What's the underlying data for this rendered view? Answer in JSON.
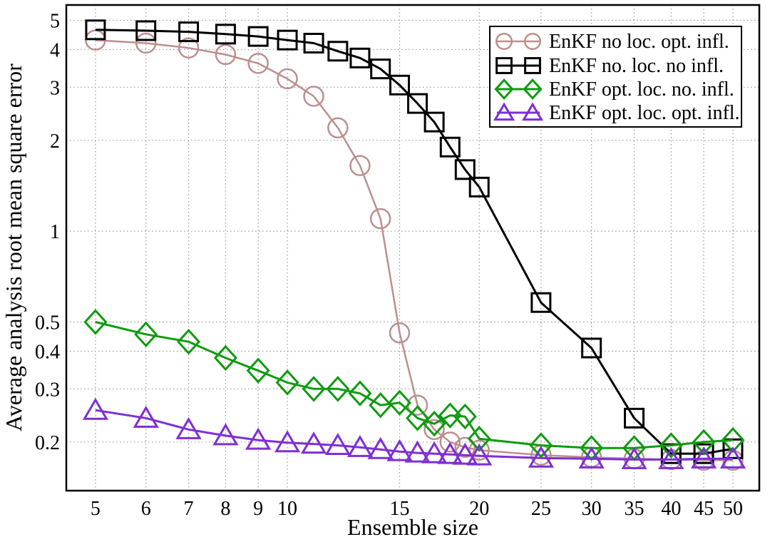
{
  "chart_data": {
    "type": "line",
    "title": "",
    "xlabel": "Ensemble size",
    "ylabel": "Average analysis root mean square error",
    "xscale": "log",
    "yscale": "log",
    "xlim": [
      4.5,
      55
    ],
    "ylim": [
      0.138,
      5.62
    ],
    "grid": true,
    "grid_style": "dotted",
    "grid_color": "#999999",
    "legend_position": "top-right",
    "x_ticks": [
      {
        "value": 5,
        "label": "5"
      },
      {
        "value": 6,
        "label": "6"
      },
      {
        "value": 7,
        "label": "7"
      },
      {
        "value": 8,
        "label": "8"
      },
      {
        "value": 9,
        "label": "9"
      },
      {
        "value": 10,
        "label": "10"
      },
      {
        "value": 15,
        "label": "15"
      },
      {
        "value": 20,
        "label": "20"
      },
      {
        "value": 25,
        "label": "25"
      },
      {
        "value": 30,
        "label": "30"
      },
      {
        "value": 35,
        "label": "35"
      },
      {
        "value": 40,
        "label": "40"
      },
      {
        "value": 45,
        "label": "45"
      },
      {
        "value": 50,
        "label": "50"
      }
    ],
    "y_ticks": [
      {
        "value": 5,
        "label": "5"
      },
      {
        "value": 4,
        "label": "4"
      },
      {
        "value": 3,
        "label": "3"
      },
      {
        "value": 2,
        "label": "2"
      },
      {
        "value": 1,
        "label": "1"
      },
      {
        "value": 0.5,
        "label": "0.5"
      },
      {
        "value": 0.4,
        "label": "0.4"
      },
      {
        "value": 0.3,
        "label": "0.3"
      },
      {
        "value": 0.2,
        "label": "0.2"
      }
    ],
    "x": [
      5,
      6,
      7,
      8,
      9,
      10,
      11,
      12,
      13,
      14,
      15,
      16,
      17,
      18,
      19,
      20,
      25,
      30,
      35,
      40,
      45,
      50
    ],
    "series": [
      {
        "name": "EnKF no loc. opt. infl.",
        "marker": "circle",
        "color": "#bc8f8f",
        "line_width": 2.5,
        "values": [
          4.3,
          4.2,
          4.05,
          3.85,
          3.6,
          3.2,
          2.8,
          2.2,
          1.65,
          1.1,
          0.46,
          0.265,
          0.22,
          0.2,
          0.192,
          0.188,
          0.181,
          0.178,
          0.176,
          0.175,
          0.174,
          0.174
        ]
      },
      {
        "name": "EnKF no. loc. no infl.",
        "marker": "square",
        "color": "#000000",
        "line_width": 3,
        "values": [
          4.65,
          4.62,
          4.58,
          4.5,
          4.42,
          4.3,
          4.2,
          3.95,
          3.75,
          3.45,
          3.05,
          2.65,
          2.3,
          1.9,
          1.6,
          1.4,
          0.58,
          0.41,
          0.24,
          0.183,
          0.183,
          0.19
        ]
      },
      {
        "name": "EnKF opt. loc. no. infl.",
        "marker": "diamond",
        "color": "#0f9b0f",
        "line_width": 3,
        "values": [
          0.5,
          0.455,
          0.43,
          0.38,
          0.345,
          0.315,
          0.3,
          0.3,
          0.29,
          0.265,
          0.27,
          0.24,
          0.23,
          0.245,
          0.243,
          0.205,
          0.195,
          0.191,
          0.191,
          0.195,
          0.2,
          0.203
        ]
      },
      {
        "name": "EnKF opt. loc. opt. infl.",
        "marker": "triangle-up",
        "color": "#7e2fd4",
        "line_width": 3,
        "values": [
          0.255,
          0.24,
          0.22,
          0.21,
          0.203,
          0.199,
          0.197,
          0.195,
          0.192,
          0.189,
          0.186,
          0.184,
          0.183,
          0.182,
          0.181,
          0.18,
          0.177,
          0.176,
          0.175,
          0.175,
          0.176,
          0.176
        ]
      }
    ]
  }
}
